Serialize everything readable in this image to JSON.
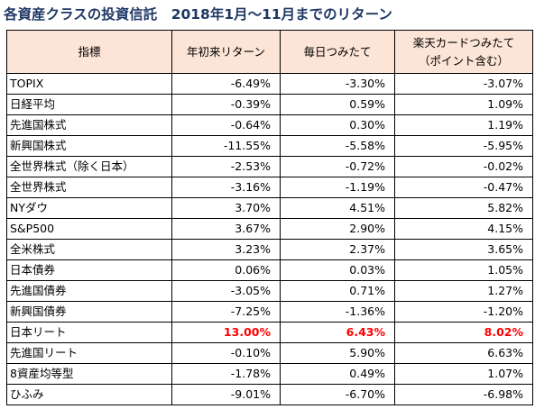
{
  "title": "各資産クラスの投資信託　2018年1月～11月までのリターン",
  "colors": {
    "title": "#1f3864",
    "header_bg": "#fce4d6",
    "highlight": "#ff0000"
  },
  "headers": [
    "指標",
    "年初来リターン",
    "毎日つみたて",
    "楽天カードつみたて",
    "（ポイント含む）"
  ],
  "rows": [
    {
      "label": "TOPIX",
      "ytd": "-6.49%",
      "daily": "-3.30%",
      "card": "-3.07%"
    },
    {
      "label": "日経平均",
      "ytd": "-0.39%",
      "daily": "0.59%",
      "card": "1.09%"
    },
    {
      "label": "先進国株式",
      "ytd": "-0.64%",
      "daily": "0.30%",
      "card": "1.19%"
    },
    {
      "label": "新興国株式",
      "ytd": "-11.55%",
      "daily": "-5.58%",
      "card": "-5.95%"
    },
    {
      "label": "全世界株式（除く日本）",
      "ytd": "-2.53%",
      "daily": "-0.72%",
      "card": "-0.02%"
    },
    {
      "label": "全世界株式",
      "ytd": "-3.16%",
      "daily": "-1.19%",
      "card": "-0.47%"
    },
    {
      "label": "NYダウ",
      "ytd": "3.70%",
      "daily": "4.51%",
      "card": "5.82%"
    },
    {
      "label": "S&P500",
      "ytd": "3.67%",
      "daily": "2.90%",
      "card": "4.15%"
    },
    {
      "label": "全米株式",
      "ytd": "3.23%",
      "daily": "2.37%",
      "card": "3.65%"
    },
    {
      "label": "日本債券",
      "ytd": "0.06%",
      "daily": "0.03%",
      "card": "1.05%"
    },
    {
      "label": "先進国債券",
      "ytd": "-3.05%",
      "daily": "0.71%",
      "card": "1.27%"
    },
    {
      "label": "新興国債券",
      "ytd": "-7.25%",
      "daily": "-1.36%",
      "card": "-1.20%"
    },
    {
      "label": "日本リート",
      "ytd": "13.00%",
      "daily": "6.43%",
      "card": "8.02%"
    },
    {
      "label": "先進国リート",
      "ytd": "-0.10%",
      "daily": "5.90%",
      "card": "6.63%"
    },
    {
      "label": "8資産均等型",
      "ytd": "-1.78%",
      "daily": "0.49%",
      "card": "1.07%"
    },
    {
      "label": "ひふみ",
      "ytd": "-9.01%",
      "daily": "-6.70%",
      "card": "-6.98%"
    }
  ]
}
